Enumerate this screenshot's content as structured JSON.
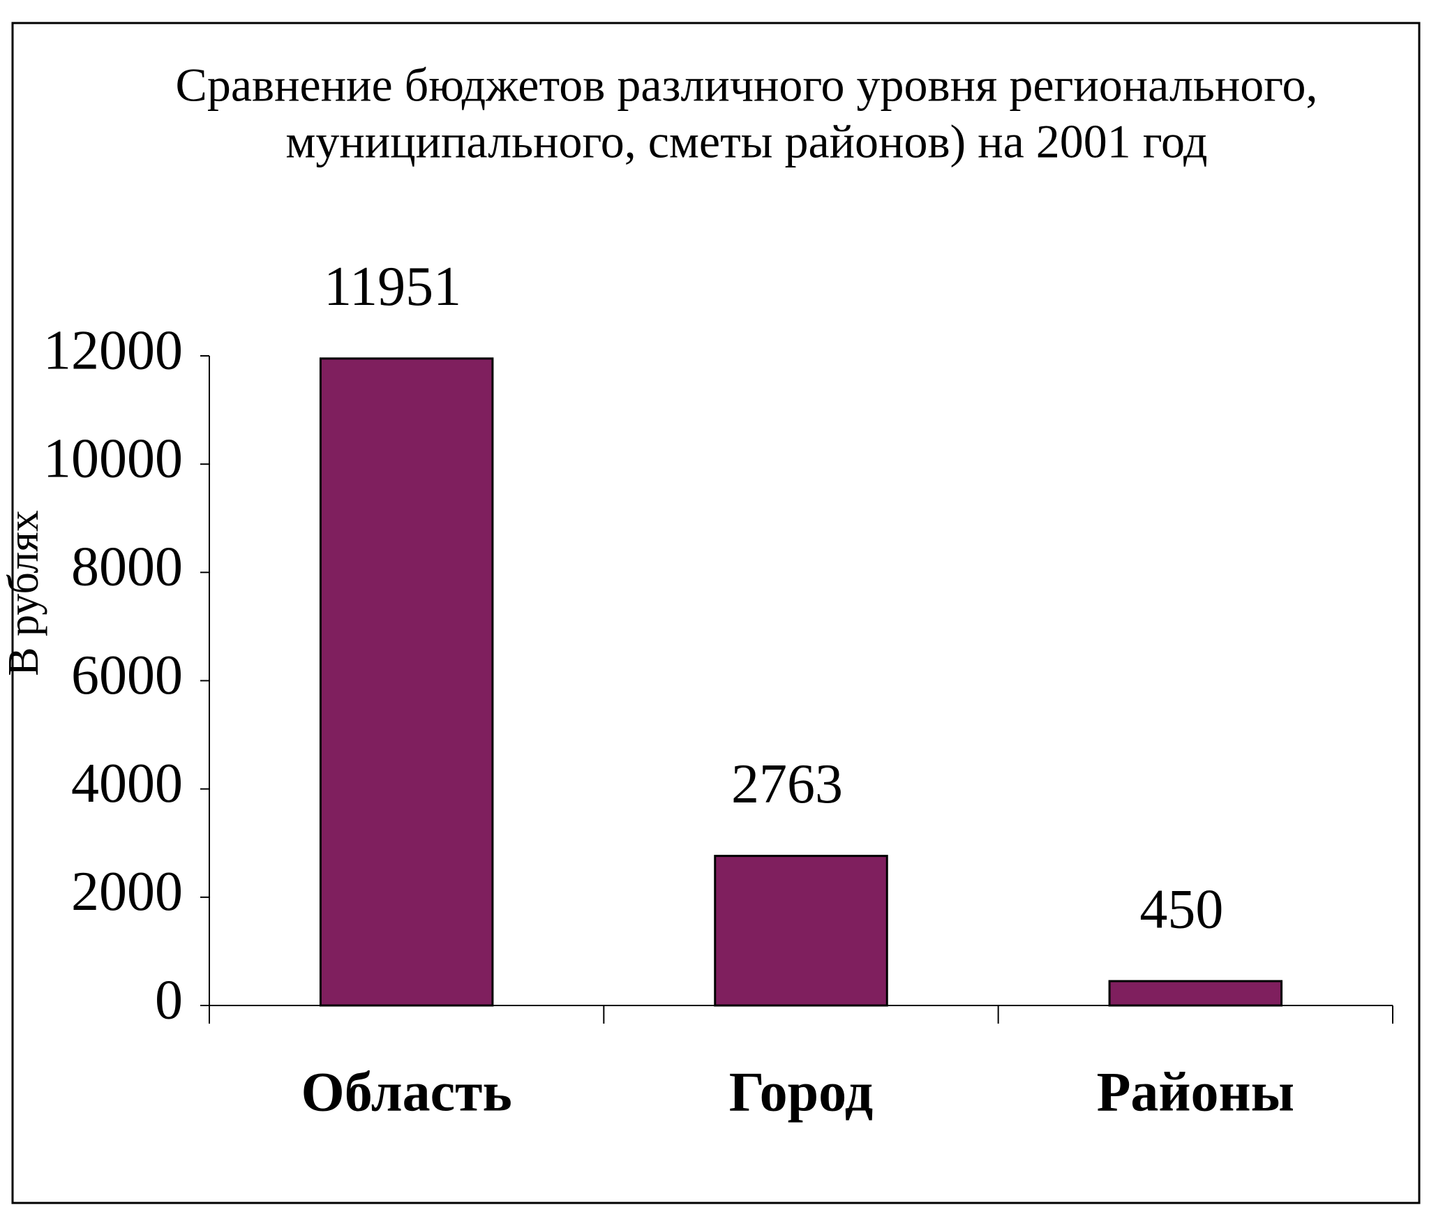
{
  "chart_data": {
    "type": "bar",
    "title": [
      "Сравнение бюджетов различного уровня регионального,",
      "муниципального, сметы районов) на 2001 год"
    ],
    "y_label": "В рублях",
    "categories": [
      "Область",
      "Город",
      "Районы"
    ],
    "values": [
      11951,
      2763,
      450
    ],
    "color": "#7f1f5e",
    "ylim": [
      0,
      12000
    ],
    "yticks": [
      0,
      2000,
      4000,
      6000,
      8000,
      10000,
      12000
    ],
    "grid": false
  }
}
